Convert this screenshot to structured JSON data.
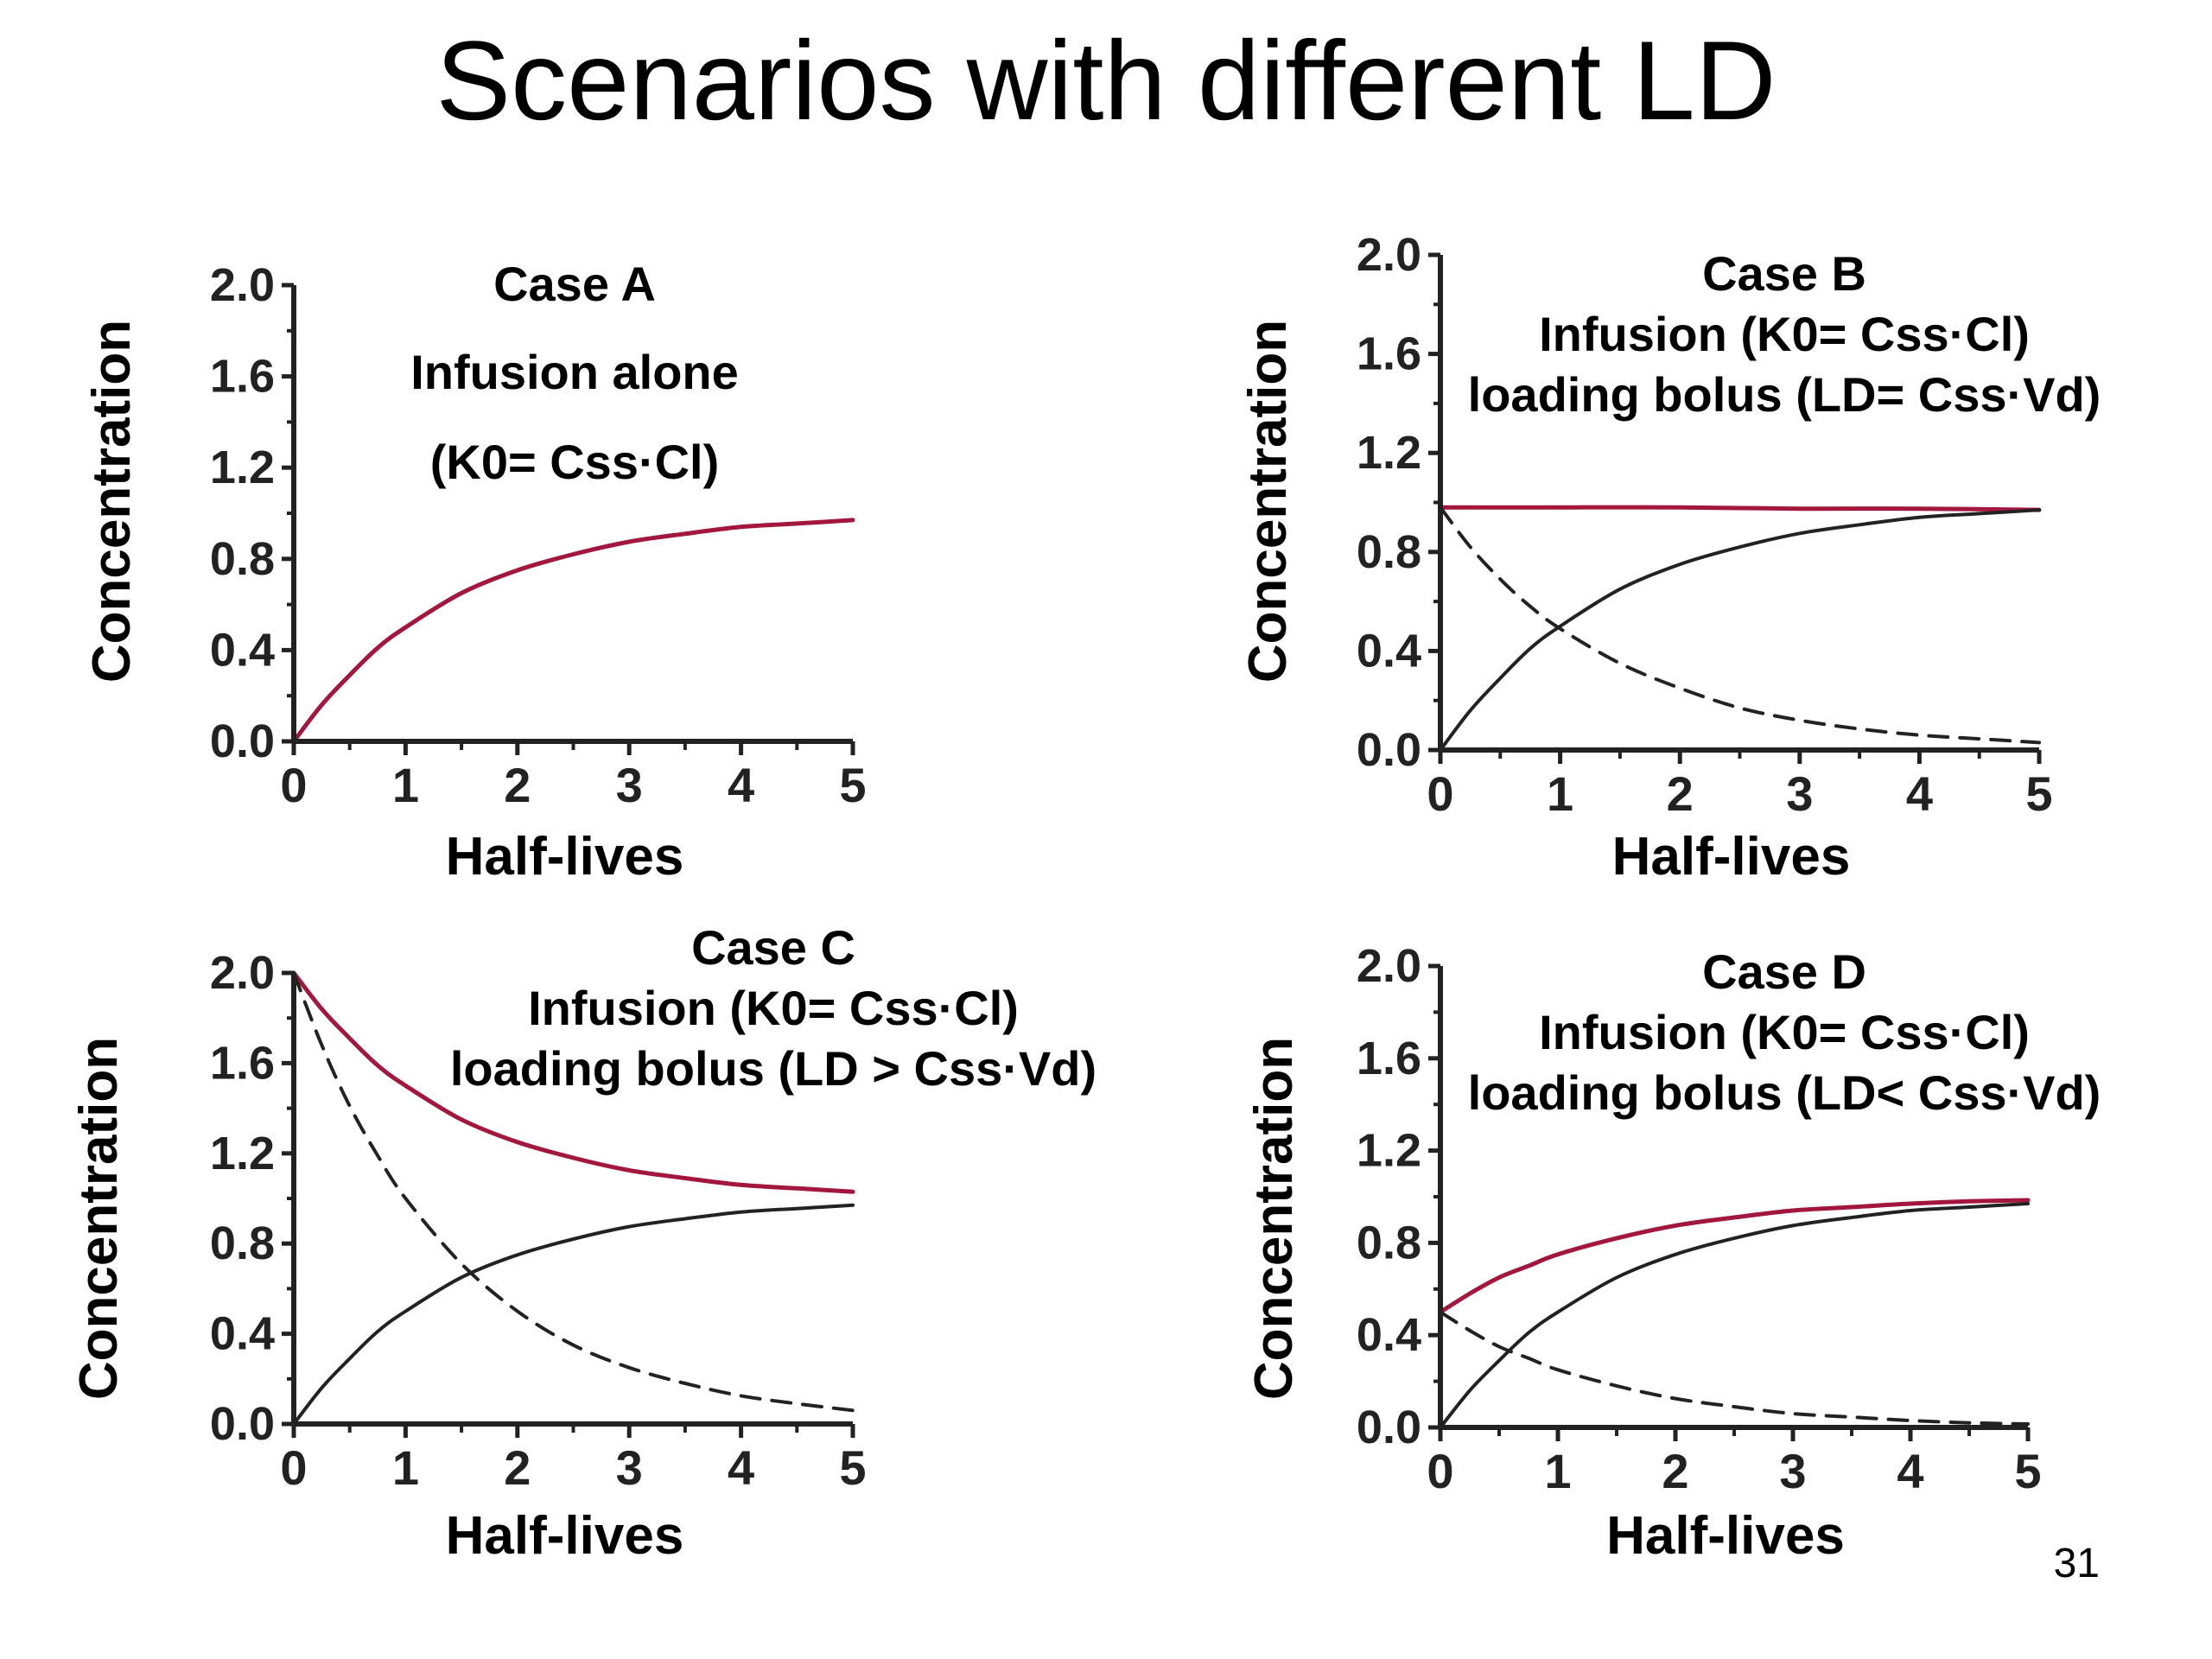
{
  "slide": {
    "title": "Scenarios with different LD",
    "page_number": "31"
  },
  "colors": {
    "total_curve": "#a3173f",
    "component_curve": "#222222",
    "axis": "#222222"
  },
  "chart_data": [
    {
      "type": "line",
      "panel": "top-left",
      "xlabel": "Half-lives",
      "ylabel": "Concentration",
      "xlim": [
        0,
        5
      ],
      "ylim": [
        0,
        2.0
      ],
      "x_ticks": [
        0,
        1,
        2,
        3,
        4,
        5
      ],
      "y_ticks": [
        0.0,
        0.4,
        0.8,
        1.2,
        1.6,
        2.0
      ],
      "y_tick_labels": [
        "0.0",
        "0.4",
        "0.8",
        "1.2",
        "1.6",
        "2.0"
      ],
      "annotations": [
        "Case A",
        "Infusion alone",
        "(K0= Css·Cl)"
      ],
      "series": [
        {
          "style": "red-solid",
          "x": [
            0,
            0.25,
            0.5,
            0.75,
            1,
            1.5,
            2,
            2.5,
            3,
            3.5,
            4,
            4.5,
            5
          ],
          "y": [
            0,
            0.16,
            0.29,
            0.41,
            0.5,
            0.65,
            0.75,
            0.82,
            0.875,
            0.91,
            0.94,
            0.955,
            0.97
          ]
        }
      ]
    },
    {
      "type": "line",
      "panel": "top-right",
      "xlabel": "Half-lives",
      "ylabel": "Concentration",
      "xlim": [
        0,
        5
      ],
      "ylim": [
        0,
        2.0
      ],
      "x_ticks": [
        0,
        1,
        2,
        3,
        4,
        5
      ],
      "y_ticks": [
        0.0,
        0.4,
        0.8,
        1.2,
        1.6,
        2.0
      ],
      "y_tick_labels": [
        "0.0",
        "0.4",
        "0.8",
        "1.2",
        "1.6",
        "2.0"
      ],
      "annotations": [
        "Case B",
        "Infusion (K0= Css·Cl)",
        "loading bolus (LD= Css·Vd)"
      ],
      "series": [
        {
          "style": "red-solid",
          "x": [
            0,
            1,
            2,
            3,
            4,
            5
          ],
          "y": [
            0.98,
            0.98,
            0.98,
            0.975,
            0.975,
            0.97
          ]
        },
        {
          "style": "black-solid",
          "x": [
            0,
            0.25,
            0.5,
            0.75,
            1,
            1.5,
            2,
            2.5,
            3,
            3.5,
            4,
            4.5,
            5
          ],
          "y": [
            0,
            0.16,
            0.29,
            0.41,
            0.5,
            0.65,
            0.75,
            0.82,
            0.875,
            0.91,
            0.94,
            0.955,
            0.97
          ]
        },
        {
          "style": "black-dashed",
          "x": [
            0,
            0.25,
            0.5,
            0.75,
            1,
            1.5,
            2,
            2.5,
            3,
            3.5,
            4,
            4.5,
            5
          ],
          "y": [
            0.98,
            0.82,
            0.69,
            0.58,
            0.49,
            0.35,
            0.25,
            0.17,
            0.12,
            0.085,
            0.06,
            0.045,
            0.03
          ]
        }
      ]
    },
    {
      "type": "line",
      "panel": "bottom-left",
      "xlabel": "Half-lives",
      "ylabel": "Concentration",
      "xlim": [
        0,
        5
      ],
      "ylim": [
        0,
        2.0
      ],
      "x_ticks": [
        0,
        1,
        2,
        3,
        4,
        5
      ],
      "y_ticks": [
        0.0,
        0.4,
        0.8,
        1.2,
        1.6,
        2.0
      ],
      "y_tick_labels": [
        "0.0",
        "0.4",
        "0.8",
        "1.2",
        "1.6",
        "2.0"
      ],
      "annotations": [
        "Case C",
        "Infusion (K0= Css·Cl)",
        "loading bolus (LD > Css·Vd)"
      ],
      "series": [
        {
          "style": "red-solid",
          "x": [
            0,
            0.25,
            0.5,
            0.75,
            1,
            1.5,
            2,
            2.5,
            3,
            3.5,
            4,
            4.5,
            5
          ],
          "y": [
            2.0,
            1.84,
            1.71,
            1.59,
            1.5,
            1.35,
            1.25,
            1.18,
            1.125,
            1.09,
            1.06,
            1.045,
            1.03
          ]
        },
        {
          "style": "black-solid",
          "x": [
            0,
            0.25,
            0.5,
            0.75,
            1,
            1.5,
            2,
            2.5,
            3,
            3.5,
            4,
            4.5,
            5
          ],
          "y": [
            0,
            0.16,
            0.29,
            0.41,
            0.5,
            0.65,
            0.75,
            0.82,
            0.875,
            0.91,
            0.94,
            0.955,
            0.97
          ]
        },
        {
          "style": "black-dashed",
          "x": [
            0,
            0.25,
            0.5,
            0.75,
            1,
            1.5,
            2,
            2.5,
            3,
            3.5,
            4,
            4.5,
            5
          ],
          "y": [
            2.0,
            1.68,
            1.41,
            1.19,
            1.0,
            0.71,
            0.5,
            0.35,
            0.25,
            0.18,
            0.125,
            0.09,
            0.06
          ]
        }
      ]
    },
    {
      "type": "line",
      "panel": "bottom-right",
      "xlabel": "Half-lives",
      "ylabel": "Concentration",
      "xlim": [
        0,
        5
      ],
      "ylim": [
        0,
        2.0
      ],
      "x_ticks": [
        0,
        1,
        2,
        3,
        4,
        5
      ],
      "y_ticks": [
        0.0,
        0.4,
        0.8,
        1.2,
        1.6,
        2.0
      ],
      "y_tick_labels": [
        "0.0",
        "0.4",
        "0.8",
        "1.2",
        "1.6",
        "2.0"
      ],
      "annotations": [
        "Case D",
        "Infusion (K0= Css·Cl)",
        "loading bolus (LD< Css·Vd)"
      ],
      "series": [
        {
          "style": "red-solid",
          "x": [
            0,
            0.25,
            0.5,
            0.75,
            1,
            1.5,
            2,
            2.5,
            3,
            3.5,
            4,
            4.5,
            5
          ],
          "y": [
            0.5,
            0.58,
            0.65,
            0.7,
            0.75,
            0.82,
            0.875,
            0.91,
            0.94,
            0.955,
            0.97,
            0.98,
            0.985
          ]
        },
        {
          "style": "black-solid",
          "x": [
            0,
            0.25,
            0.5,
            0.75,
            1,
            1.5,
            2,
            2.5,
            3,
            3.5,
            4,
            4.5,
            5
          ],
          "y": [
            0,
            0.16,
            0.29,
            0.41,
            0.5,
            0.65,
            0.75,
            0.82,
            0.875,
            0.91,
            0.94,
            0.955,
            0.97
          ]
        },
        {
          "style": "black-dashed",
          "x": [
            0,
            0.25,
            0.5,
            0.75,
            1,
            1.5,
            2,
            2.5,
            3,
            3.5,
            4,
            4.5,
            5
          ],
          "y": [
            0.5,
            0.42,
            0.35,
            0.3,
            0.25,
            0.18,
            0.125,
            0.09,
            0.06,
            0.045,
            0.03,
            0.02,
            0.015
          ]
        }
      ]
    }
  ]
}
